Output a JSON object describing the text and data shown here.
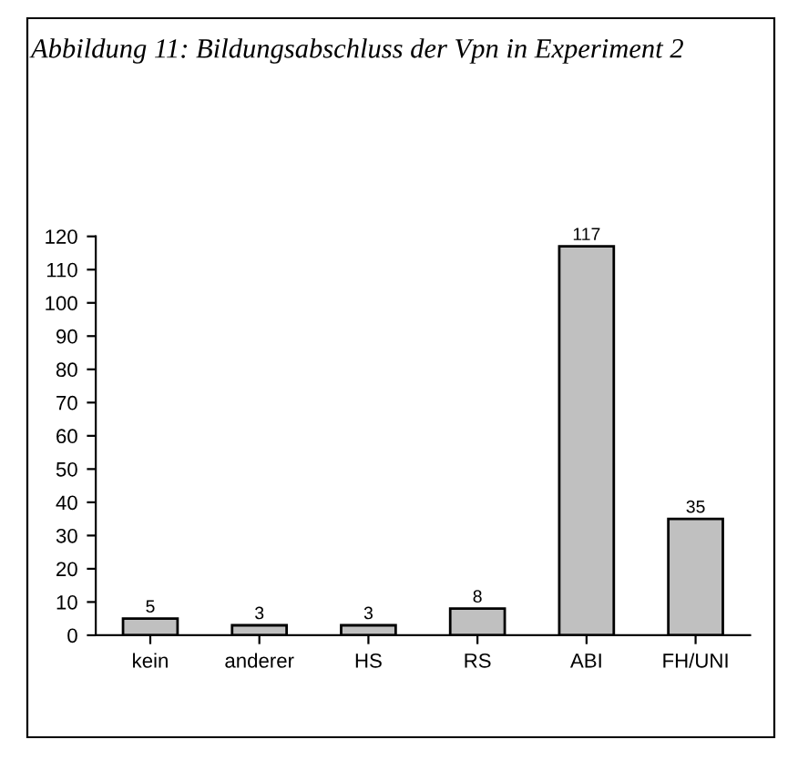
{
  "chart_data": {
    "type": "bar",
    "title": "Abbildung 11: Bildungsabschluss der Vpn in Experiment 2",
    "categories": [
      "kein",
      "anderer",
      "HS",
      "RS",
      "ABI",
      "FH/UNI"
    ],
    "values": [
      5,
      3,
      3,
      8,
      117,
      35
    ],
    "color": "#c0c0c0",
    "ylim": [
      0,
      120
    ],
    "yticks": [
      0,
      10,
      20,
      30,
      40,
      50,
      60,
      70,
      80,
      90,
      100,
      110,
      120
    ],
    "data_labels": true,
    "grid": false,
    "legend": false
  }
}
